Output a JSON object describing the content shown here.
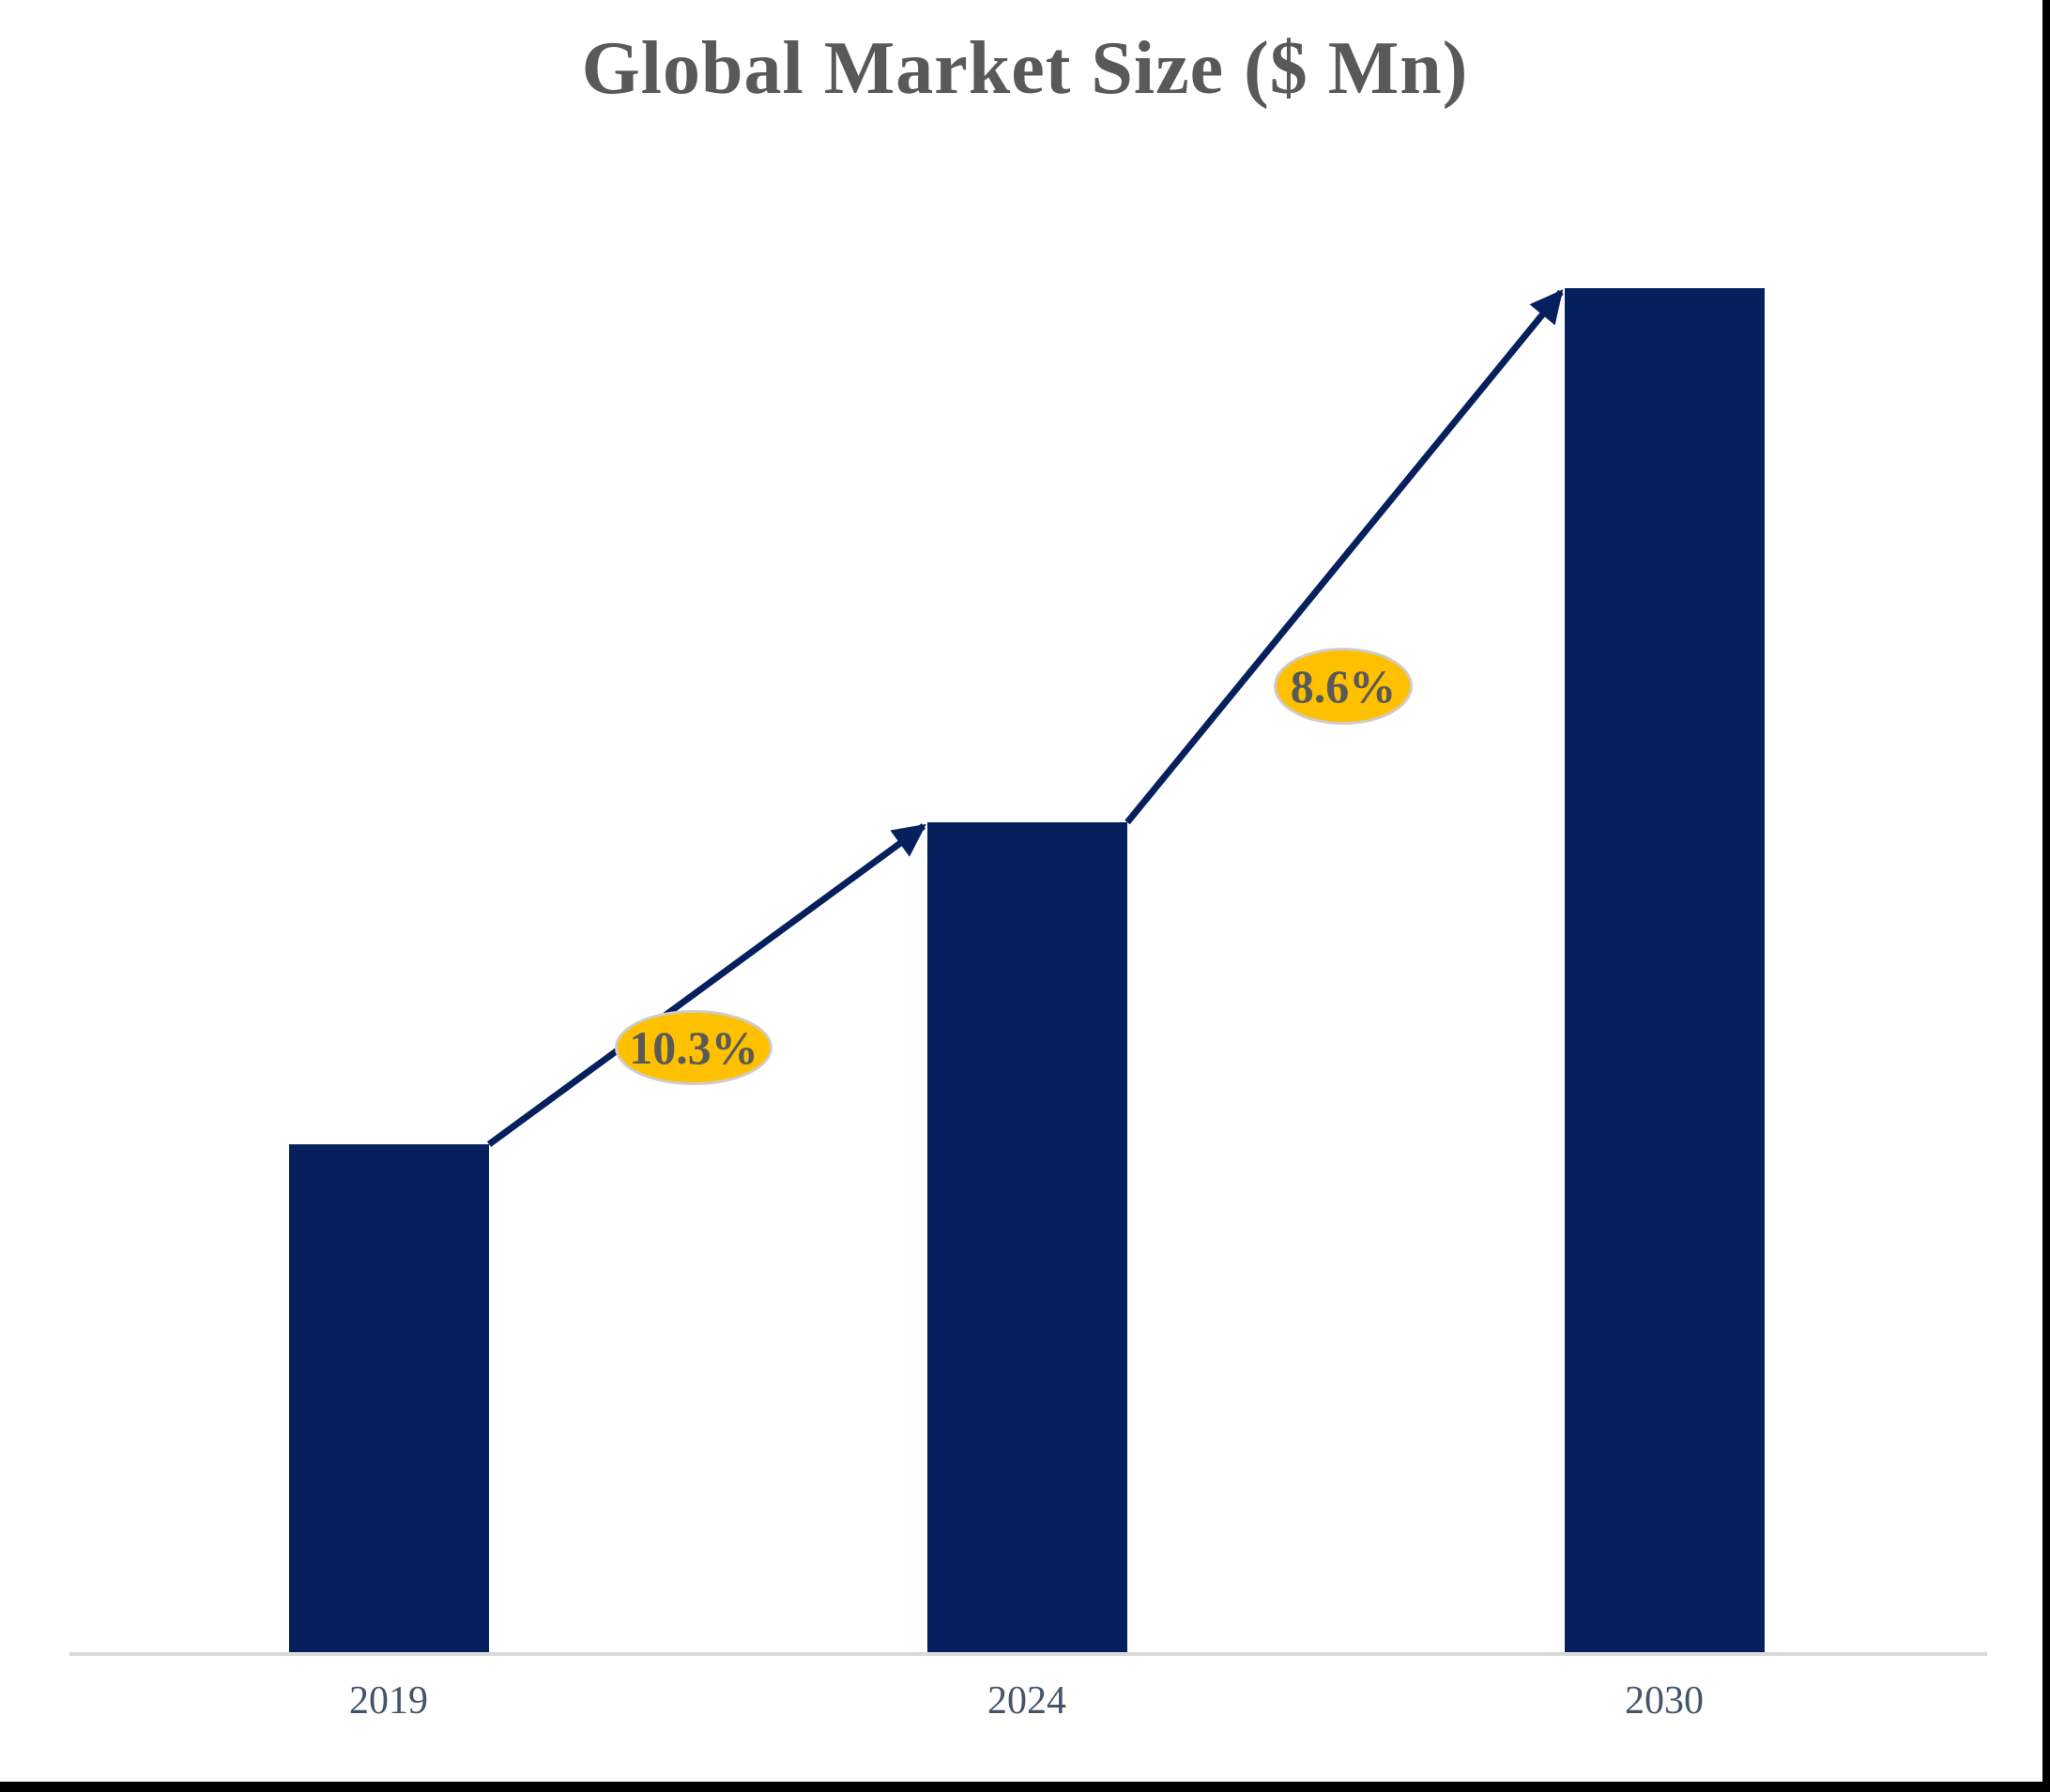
{
  "page": {
    "background": "#FFFFFF",
    "frame_border_color": "#000000"
  },
  "chart_data": {
    "type": "bar",
    "title": "Global Market Size ($ Mn)",
    "title_color": "#595959",
    "categories": [
      "2019",
      "2024",
      "2030"
    ],
    "series": [
      {
        "name": "Global Market Size ($ Mn)",
        "values_relative_to_tallest_bar": [
          0.373,
          0.609,
          1.0
        ]
      }
    ],
    "value_axis_visible": false,
    "data_labels_visible": false,
    "grid": false,
    "legend": "none",
    "bar_color": "#06205E",
    "arrow_color": "#06205E",
    "axis_line_color": "#D9D9D9",
    "category_label_color": "#44546A",
    "annotations": [
      {
        "type": "cagr-arrow",
        "from": "2019",
        "to": "2024",
        "label": "10.3%",
        "bubble_fill": "#FFC000",
        "text_color": "#595959"
      },
      {
        "type": "cagr-arrow",
        "from": "2024",
        "to": "2030",
        "label": "8.6%",
        "bubble_fill": "#FFC000",
        "text_color": "#595959"
      }
    ]
  }
}
